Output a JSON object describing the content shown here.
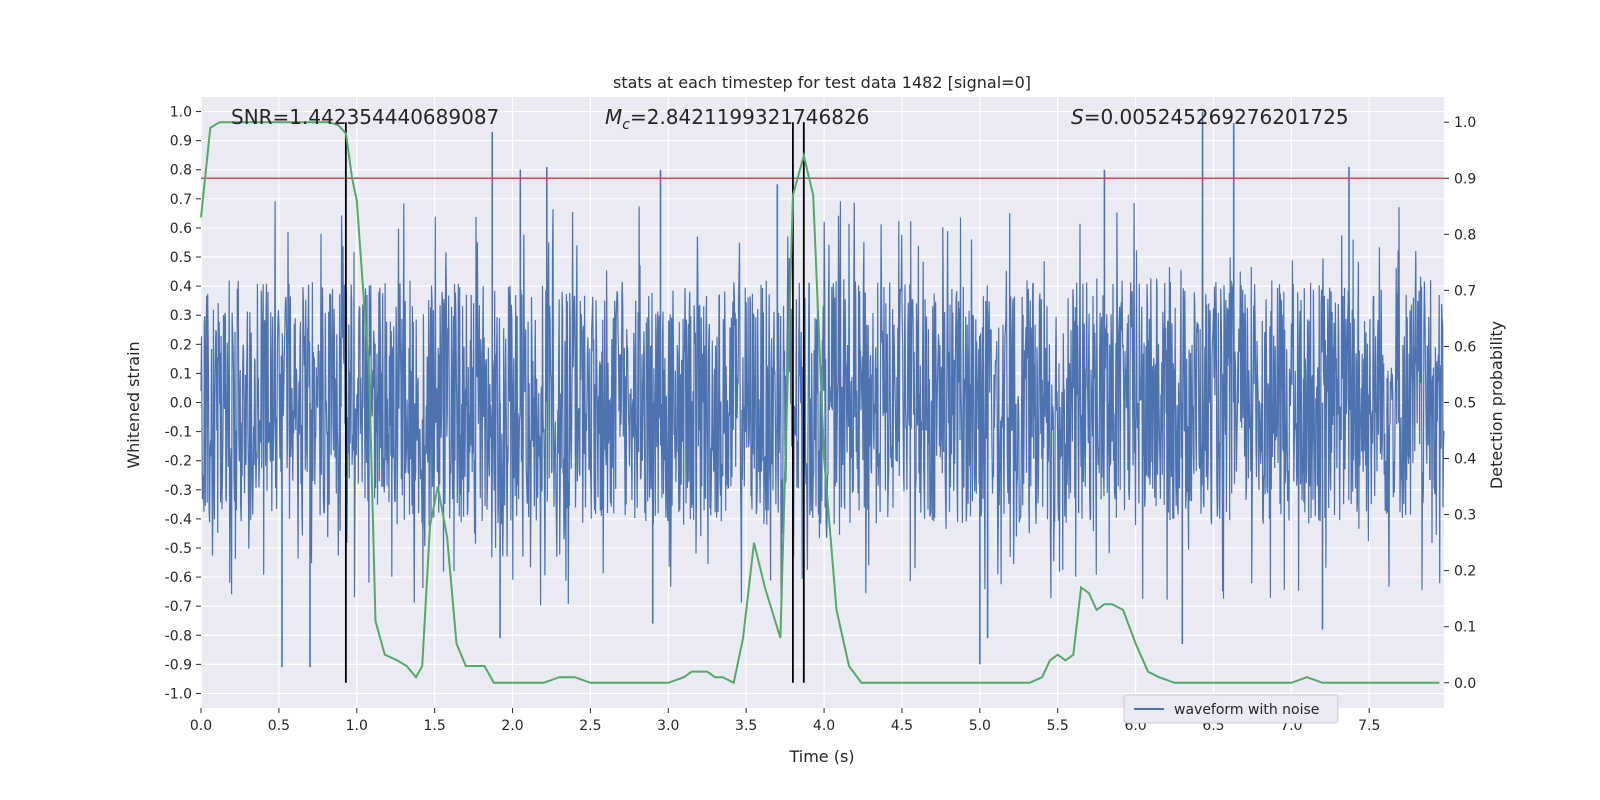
{
  "chart_data": {
    "type": "line",
    "title": "stats at each timestep for test data 1482 [signal=0]",
    "xlabel": "Time (s)",
    "ylabel_left": "Whitened strain",
    "ylabel_right": "Detection probability",
    "xlim": [
      0.0,
      7.98
    ],
    "ylim_left": [
      -1.05,
      1.05
    ],
    "ylim_right": [
      -0.045,
      1.045
    ],
    "grid": true,
    "x_ticks": [
      "0.0",
      "0.5",
      "1.0",
      "1.5",
      "2.0",
      "2.5",
      "3.0",
      "3.5",
      "4.0",
      "4.5",
      "5.0",
      "5.5",
      "6.0",
      "6.5",
      "7.0",
      "7.5"
    ],
    "y_left_ticks": [
      "-1.0",
      "-0.9",
      "-0.8",
      "-0.7",
      "-0.6",
      "-0.5",
      "-0.4",
      "-0.3",
      "-0.2",
      "-0.1",
      "0.0",
      "0.1",
      "0.2",
      "0.3",
      "0.4",
      "0.5",
      "0.6",
      "0.7",
      "0.8",
      "0.9",
      "1.0"
    ],
    "y_right_ticks": [
      "0.0",
      "0.1",
      "0.2",
      "0.3",
      "0.4",
      "0.5",
      "0.6",
      "0.7",
      "0.8",
      "0.9",
      "1.0"
    ],
    "annotations": {
      "snr": "SNR=1.442354440689087",
      "mc_symbol": "M",
      "mc_subscript": "c",
      "mc_value": "=2.8421199321746826",
      "s_symbol": "S",
      "s_value": "=0.005245269276201725"
    },
    "threshold_probability": 0.9,
    "vertical_markers_s": [
      0.93,
      3.8,
      3.87
    ],
    "series": [
      {
        "name": "waveform with noise",
        "axis": "left",
        "color": "#4c72b0",
        "description": "whitened noise strain, dense band within about +/-0.45 with spikes",
        "spikes": [
          {
            "x": 0.7,
            "y": -0.91
          },
          {
            "x": 0.52,
            "y": -0.91
          },
          {
            "x": 1.87,
            "y": 0.93
          },
          {
            "x": 2.05,
            "y": 0.8
          },
          {
            "x": 2.22,
            "y": 0.81
          },
          {
            "x": 2.95,
            "y": 0.8
          },
          {
            "x": 3.7,
            "y": 0.75
          },
          {
            "x": 5.0,
            "y": -0.9
          },
          {
            "x": 5.8,
            "y": 0.8
          },
          {
            "x": 6.43,
            "y": 1.0
          },
          {
            "x": 6.63,
            "y": 0.96
          },
          {
            "x": 7.37,
            "y": 0.81
          },
          {
            "x": 1.92,
            "y": -0.81
          },
          {
            "x": 2.9,
            "y": -0.76
          },
          {
            "x": 5.05,
            "y": -0.81
          },
          {
            "x": 7.2,
            "y": -0.78
          },
          {
            "x": 6.3,
            "y": -0.83
          }
        ]
      },
      {
        "name": "detection probability",
        "axis": "right",
        "color": "#55a868",
        "x": [
          0.0,
          0.06,
          0.12,
          0.18,
          0.3,
          0.5,
          0.7,
          0.82,
          0.88,
          0.93,
          0.97,
          1.0,
          1.08,
          1.12,
          1.18,
          1.26,
          1.32,
          1.38,
          1.42,
          1.47,
          1.52,
          1.58,
          1.64,
          1.7,
          1.76,
          1.82,
          1.88,
          2.0,
          2.1,
          2.2,
          2.3,
          2.35,
          2.4,
          2.5,
          2.6,
          2.7,
          2.8,
          2.9,
          3.0,
          3.1,
          3.15,
          3.2,
          3.25,
          3.3,
          3.35,
          3.42,
          3.48,
          3.55,
          3.62,
          3.72,
          3.8,
          3.87,
          3.93,
          4.0,
          4.08,
          4.16,
          4.24,
          4.35,
          4.5,
          4.65,
          4.8,
          4.95,
          5.1,
          5.25,
          5.32,
          5.4,
          5.45,
          5.5,
          5.55,
          5.6,
          5.65,
          5.7,
          5.75,
          5.8,
          5.85,
          5.92,
          6.0,
          6.08,
          6.15,
          6.25,
          6.4,
          6.6,
          6.8,
          7.0,
          7.1,
          7.2,
          7.4,
          7.6,
          7.8,
          7.95
        ],
        "y": [
          0.83,
          0.99,
          1.0,
          1.0,
          1.0,
          1.0,
          1.0,
          1.0,
          0.995,
          0.98,
          0.9,
          0.86,
          0.55,
          0.11,
          0.05,
          0.04,
          0.03,
          0.01,
          0.03,
          0.28,
          0.35,
          0.26,
          0.07,
          0.03,
          0.03,
          0.03,
          0.0,
          0.0,
          0.0,
          0.0,
          0.01,
          0.01,
          0.01,
          0.0,
          0.0,
          0.0,
          0.0,
          0.0,
          0.0,
          0.01,
          0.02,
          0.02,
          0.02,
          0.01,
          0.01,
          0.0,
          0.08,
          0.25,
          0.17,
          0.08,
          0.87,
          0.94,
          0.87,
          0.4,
          0.13,
          0.03,
          0.0,
          0.0,
          0.0,
          0.0,
          0.0,
          0.0,
          0.0,
          0.0,
          0.0,
          0.01,
          0.04,
          0.05,
          0.04,
          0.05,
          0.17,
          0.16,
          0.13,
          0.14,
          0.14,
          0.13,
          0.07,
          0.02,
          0.01,
          0.0,
          0.0,
          0.0,
          0.0,
          0.0,
          0.01,
          0.0,
          0.0,
          0.0,
          0.0,
          0.0
        ]
      }
    ],
    "threshold_line_color": "#c44e52",
    "legend": [
      {
        "label": "waveform with noise",
        "color": "#4c72b0"
      }
    ],
    "legend_position": "lower-right"
  }
}
